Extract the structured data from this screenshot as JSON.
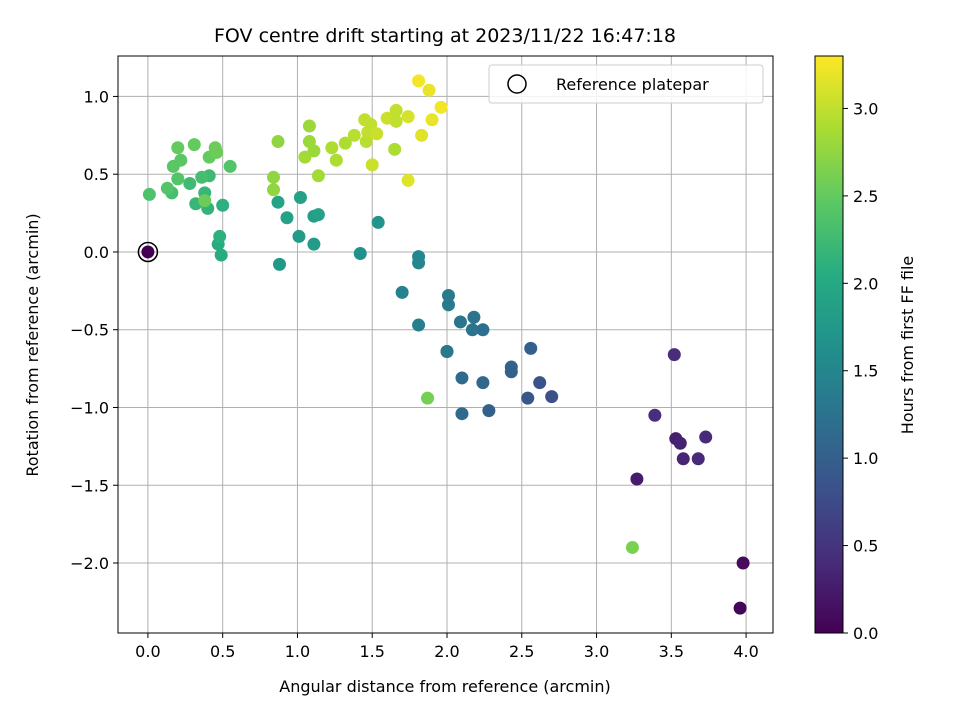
{
  "chart_data": {
    "type": "scatter",
    "title": "FOV centre drift starting at 2023/11/22 16:47:18",
    "xlabel": "Angular distance from reference (arcmin)",
    "ylabel": "Rotation from reference (arcmin)",
    "colorbar_label": "Hours from first FF file",
    "colormap": "viridis",
    "xlim": [
      -0.2,
      4.18
    ],
    "ylim": [
      -2.45,
      1.26
    ],
    "clim": [
      0.0,
      3.3
    ],
    "xticks": [
      0.0,
      0.5,
      1.0,
      1.5,
      2.0,
      2.5,
      3.0,
      3.5,
      4.0
    ],
    "xtick_labels": [
      "0.0",
      "0.5",
      "1.0",
      "1.5",
      "2.0",
      "2.5",
      "3.0",
      "3.5",
      "4.0"
    ],
    "yticks": [
      1.0,
      0.5,
      0.0,
      -0.5,
      -1.0,
      -1.5,
      -2.0
    ],
    "ytick_labels": [
      "1.0",
      "0.5",
      "0.0",
      "−0.5",
      "−1.0",
      "−1.5",
      "−2.0"
    ],
    "cticks": [
      0.0,
      0.5,
      1.0,
      1.5,
      2.0,
      2.5,
      3.0
    ],
    "ctick_labels": [
      "0.0",
      "0.5",
      "1.0",
      "1.5",
      "2.0",
      "2.5",
      "3.0"
    ],
    "grid": true,
    "legend": {
      "placement": "top-right",
      "entries": [
        "Reference platepar"
      ]
    },
    "reference_point": {
      "x": 0.0,
      "y": 0.0,
      "label": "Reference platepar"
    },
    "points": [
      {
        "x": 0.0,
        "y": 0.0,
        "t": 0.0
      },
      {
        "x": 3.96,
        "y": -2.29,
        "t": 0.05
      },
      {
        "x": 3.98,
        "y": -2.0,
        "t": 0.1
      },
      {
        "x": 3.27,
        "y": -1.46,
        "t": 0.25
      },
      {
        "x": 3.53,
        "y": -1.2,
        "t": 0.3
      },
      {
        "x": 3.56,
        "y": -1.23,
        "t": 0.33
      },
      {
        "x": 3.58,
        "y": -1.33,
        "t": 0.35
      },
      {
        "x": 3.68,
        "y": -1.33,
        "t": 0.38
      },
      {
        "x": 3.73,
        "y": -1.19,
        "t": 0.4
      },
      {
        "x": 3.39,
        "y": -1.05,
        "t": 0.45
      },
      {
        "x": 3.52,
        "y": -0.66,
        "t": 0.42
      },
      {
        "x": 2.7,
        "y": -0.93,
        "t": 0.8
      },
      {
        "x": 2.62,
        "y": -0.84,
        "t": 0.85
      },
      {
        "x": 2.54,
        "y": -0.94,
        "t": 0.9
      },
      {
        "x": 2.56,
        "y": -0.62,
        "t": 1.0
      },
      {
        "x": 2.43,
        "y": -0.74,
        "t": 1.05
      },
      {
        "x": 2.43,
        "y": -0.77,
        "t": 1.0
      },
      {
        "x": 2.28,
        "y": -1.02,
        "t": 1.02
      },
      {
        "x": 2.24,
        "y": -0.84,
        "t": 1.1
      },
      {
        "x": 2.1,
        "y": -1.04,
        "t": 1.15
      },
      {
        "x": 2.1,
        "y": -0.81,
        "t": 1.15
      },
      {
        "x": 2.24,
        "y": -0.5,
        "t": 1.2
      },
      {
        "x": 2.18,
        "y": -0.42,
        "t": 1.25
      },
      {
        "x": 2.17,
        "y": -0.5,
        "t": 1.25
      },
      {
        "x": 2.09,
        "y": -0.45,
        "t": 1.28
      },
      {
        "x": 2.0,
        "y": -0.64,
        "t": 1.3
      },
      {
        "x": 2.0,
        "y": -0.64,
        "t": 1.3
      },
      {
        "x": 2.01,
        "y": -0.34,
        "t": 1.35
      },
      {
        "x": 2.01,
        "y": -0.28,
        "t": 1.35
      },
      {
        "x": 1.81,
        "y": -0.47,
        "t": 1.4
      },
      {
        "x": 1.7,
        "y": -0.26,
        "t": 1.45
      },
      {
        "x": 1.81,
        "y": -0.07,
        "t": 1.5
      },
      {
        "x": 1.81,
        "y": -0.03,
        "t": 1.52
      },
      {
        "x": 1.42,
        "y": -0.01,
        "t": 1.65
      },
      {
        "x": 1.54,
        "y": 0.19,
        "t": 1.7
      },
      {
        "x": 0.88,
        "y": -0.08,
        "t": 1.75
      },
      {
        "x": 1.11,
        "y": 0.05,
        "t": 1.8
      },
      {
        "x": 1.01,
        "y": 0.1,
        "t": 1.8
      },
      {
        "x": 1.11,
        "y": 0.23,
        "t": 1.85
      },
      {
        "x": 1.14,
        "y": 0.24,
        "t": 1.88
      },
      {
        "x": 1.02,
        "y": 0.35,
        "t": 1.9
      },
      {
        "x": 0.93,
        "y": 0.22,
        "t": 1.9
      },
      {
        "x": 0.87,
        "y": 0.32,
        "t": 1.92
      },
      {
        "x": 0.49,
        "y": -0.02,
        "t": 2.05
      },
      {
        "x": 0.47,
        "y": 0.05,
        "t": 2.05
      },
      {
        "x": 0.48,
        "y": 0.1,
        "t": 2.1
      },
      {
        "x": 0.5,
        "y": 0.3,
        "t": 2.1
      },
      {
        "x": 0.4,
        "y": 0.28,
        "t": 2.15
      },
      {
        "x": 0.32,
        "y": 0.31,
        "t": 2.2
      },
      {
        "x": 0.38,
        "y": 0.38,
        "t": 2.2
      },
      {
        "x": 0.28,
        "y": 0.44,
        "t": 2.25
      },
      {
        "x": 0.41,
        "y": 0.49,
        "t": 2.25
      },
      {
        "x": 0.36,
        "y": 0.48,
        "t": 2.3
      },
      {
        "x": 0.16,
        "y": 0.38,
        "t": 2.3
      },
      {
        "x": 0.01,
        "y": 0.37,
        "t": 2.35
      },
      {
        "x": 0.13,
        "y": 0.41,
        "t": 2.4
      },
      {
        "x": 0.2,
        "y": 0.47,
        "t": 2.4
      },
      {
        "x": 0.17,
        "y": 0.55,
        "t": 2.45
      },
      {
        "x": 0.22,
        "y": 0.59,
        "t": 2.45
      },
      {
        "x": 0.2,
        "y": 0.67,
        "t": 2.5
      },
      {
        "x": 0.31,
        "y": 0.69,
        "t": 2.5
      },
      {
        "x": 0.41,
        "y": 0.61,
        "t": 2.5
      },
      {
        "x": 0.45,
        "y": 0.67,
        "t": 2.55
      },
      {
        "x": 0.46,
        "y": 0.64,
        "t": 2.55
      },
      {
        "x": 0.55,
        "y": 0.55,
        "t": 2.4
      },
      {
        "x": 0.38,
        "y": 0.33,
        "t": 2.55
      },
      {
        "x": 1.87,
        "y": -0.94,
        "t": 2.6
      },
      {
        "x": 3.24,
        "y": -1.9,
        "t": 2.62
      },
      {
        "x": 0.84,
        "y": 0.4,
        "t": 2.75
      },
      {
        "x": 0.84,
        "y": 0.48,
        "t": 2.75
      },
      {
        "x": 0.87,
        "y": 0.71,
        "t": 2.75
      },
      {
        "x": 1.08,
        "y": 0.81,
        "t": 2.8
      },
      {
        "x": 1.08,
        "y": 0.71,
        "t": 2.8
      },
      {
        "x": 1.11,
        "y": 0.65,
        "t": 2.8
      },
      {
        "x": 1.05,
        "y": 0.61,
        "t": 2.85
      },
      {
        "x": 1.14,
        "y": 0.49,
        "t": 2.85
      },
      {
        "x": 1.23,
        "y": 0.67,
        "t": 2.9
      },
      {
        "x": 1.26,
        "y": 0.59,
        "t": 2.9
      },
      {
        "x": 1.32,
        "y": 0.7,
        "t": 2.9
      },
      {
        "x": 1.38,
        "y": 0.75,
        "t": 2.95
      },
      {
        "x": 1.46,
        "y": 0.71,
        "t": 2.95
      },
      {
        "x": 1.47,
        "y": 0.77,
        "t": 3.0
      },
      {
        "x": 1.45,
        "y": 0.85,
        "t": 3.0
      },
      {
        "x": 1.49,
        "y": 0.82,
        "t": 3.0
      },
      {
        "x": 1.53,
        "y": 0.76,
        "t": 3.05
      },
      {
        "x": 1.5,
        "y": 0.56,
        "t": 3.05
      },
      {
        "x": 1.65,
        "y": 0.66,
        "t": 2.9
      },
      {
        "x": 1.6,
        "y": 0.86,
        "t": 3.05
      },
      {
        "x": 1.66,
        "y": 0.84,
        "t": 3.0
      },
      {
        "x": 1.66,
        "y": 0.91,
        "t": 3.0
      },
      {
        "x": 1.74,
        "y": 0.87,
        "t": 3.1
      },
      {
        "x": 1.74,
        "y": 0.46,
        "t": 3.15
      },
      {
        "x": 1.83,
        "y": 0.75,
        "t": 3.15
      },
      {
        "x": 1.88,
        "y": 1.04,
        "t": 3.2
      },
      {
        "x": 1.81,
        "y": 1.1,
        "t": 3.25
      },
      {
        "x": 1.9,
        "y": 0.85,
        "t": 3.2
      },
      {
        "x": 1.96,
        "y": 0.93,
        "t": 3.25
      }
    ]
  }
}
